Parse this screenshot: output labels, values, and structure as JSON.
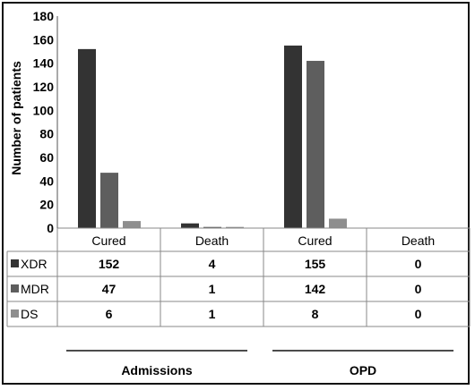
{
  "chart_data": {
    "type": "bar",
    "ylabel": "Number of patients",
    "ylim": [
      0,
      180
    ],
    "yticks": [
      "0",
      "20",
      "40",
      "60",
      "80",
      "100",
      "120",
      "140",
      "160",
      "180"
    ],
    "groups": [
      "Admissions",
      "OPD"
    ],
    "categories": [
      "Cured",
      "Death",
      "Cured",
      "Death"
    ],
    "series": [
      {
        "name": "XDR",
        "color": "#333333",
        "values": [
          152,
          4,
          155,
          0
        ],
        "labels": [
          "152",
          "4",
          "155",
          "0"
        ]
      },
      {
        "name": "MDR",
        "color": "#5e5e5e",
        "values": [
          47,
          1,
          142,
          0
        ],
        "labels": [
          "47",
          "1",
          "142",
          "0"
        ]
      },
      {
        "name": "DS",
        "color": "#8e8e8e",
        "values": [
          6,
          1,
          8,
          0
        ],
        "labels": [
          "6",
          "1",
          "8",
          "0"
        ]
      }
    ],
    "grid": false,
    "legend": "table"
  }
}
